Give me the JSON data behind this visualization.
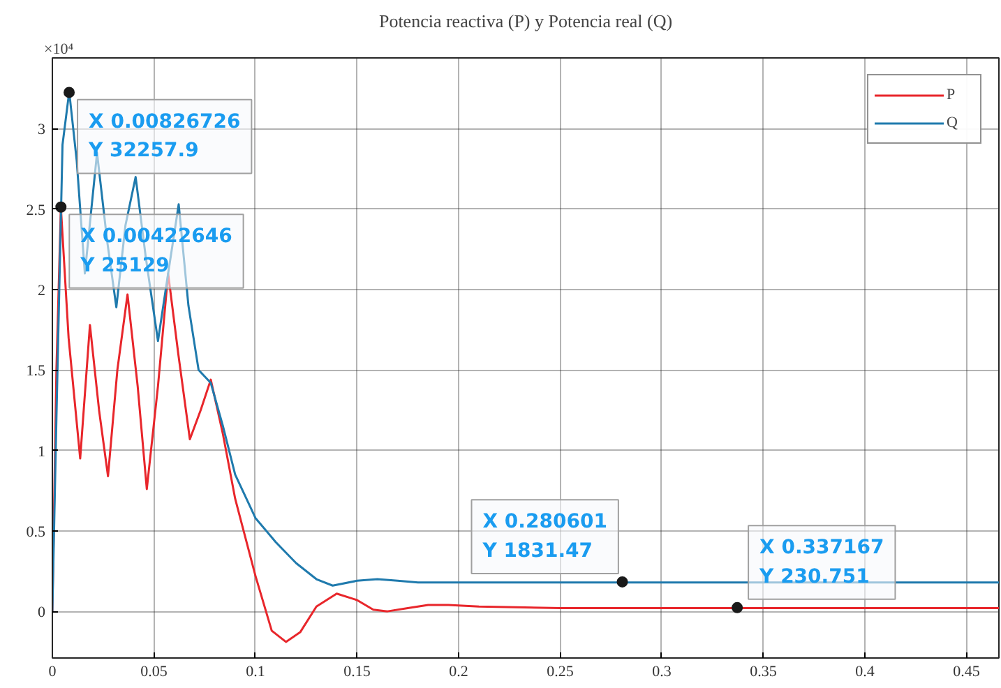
{
  "chart_data": {
    "type": "line",
    "title": "Potencia reactiva (P) y Potencia real (Q)",
    "xlim": [
      0,
      0.466
    ],
    "xticks": [
      0,
      0.05,
      0.1,
      0.15,
      0.2,
      0.25,
      0.3,
      0.35,
      0.4,
      0.45
    ],
    "ylim": [
      -0.29,
      3.44
    ],
    "yticks": [
      0,
      0.5,
      1,
      1.5,
      2,
      2.5,
      3
    ],
    "grid": true,
    "legend": "top right",
    "line_style": "solid",
    "marker": "none",
    "series": [
      {
        "name": "P",
        "color": "#e8262b",
        "x": [
          0,
          0.002,
          0.0042,
          0.008,
          0.0137,
          0.0185,
          0.023,
          0.0274,
          0.032,
          0.037,
          0.042,
          0.0465,
          0.052,
          0.057,
          0.062,
          0.0677,
          0.073,
          0.078,
          0.084,
          0.09,
          0.1,
          0.108,
          0.115,
          0.122,
          0.13,
          0.14,
          0.15,
          0.158,
          0.165,
          0.175,
          0.185,
          0.195,
          0.21,
          0.25,
          0.3,
          0.337,
          0.4,
          0.466
        ],
        "values": [
          0,
          1.5,
          2.51,
          1.7,
          0.95,
          1.78,
          1.25,
          0.84,
          1.5,
          1.97,
          1.4,
          0.76,
          1.4,
          2.1,
          1.6,
          1.07,
          1.25,
          1.44,
          1.1,
          0.7,
          0.22,
          -0.12,
          -0.19,
          -0.13,
          0.03,
          0.11,
          0.07,
          0.01,
          0.0,
          0.02,
          0.04,
          0.04,
          0.03,
          0.02,
          0.02,
          0.02,
          0.02,
          0.02
        ]
      },
      {
        "name": "Q",
        "color": "#1f7aad",
        "x": [
          0,
          0.002,
          0.005,
          0.0083,
          0.012,
          0.016,
          0.022,
          0.027,
          0.0315,
          0.036,
          0.041,
          0.046,
          0.052,
          0.057,
          0.0622,
          0.067,
          0.072,
          0.078,
          0.084,
          0.09,
          0.1,
          0.11,
          0.12,
          0.13,
          0.138,
          0.15,
          0.16,
          0.17,
          0.18,
          0.2,
          0.24,
          0.281,
          0.466
        ],
        "values": [
          0,
          1.2,
          2.9,
          3.23,
          2.8,
          2.1,
          2.85,
          2.3,
          1.89,
          2.4,
          2.7,
          2.2,
          1.68,
          2.1,
          2.53,
          1.9,
          1.5,
          1.42,
          1.15,
          0.85,
          0.58,
          0.43,
          0.3,
          0.2,
          0.16,
          0.19,
          0.2,
          0.19,
          0.18,
          0.18,
          0.18,
          0.18,
          0.18
        ]
      }
    ],
    "annotations": [
      "×10⁴",
      {
        "text": "X 0.00826726\nY 32257.9",
        "x": 0.00826726,
        "y": 3.22579
      },
      {
        "text": "X 0.00422646\nY 25129",
        "x": 0.00422646,
        "y": 2.5129
      },
      {
        "text": "X 0.280601\nY 1831.47",
        "x": 0.280601,
        "y": 0.183147
      },
      {
        "text": "X 0.337167\nY 230.751",
        "x": 0.337167,
        "y": 0.0230751
      }
    ]
  }
}
